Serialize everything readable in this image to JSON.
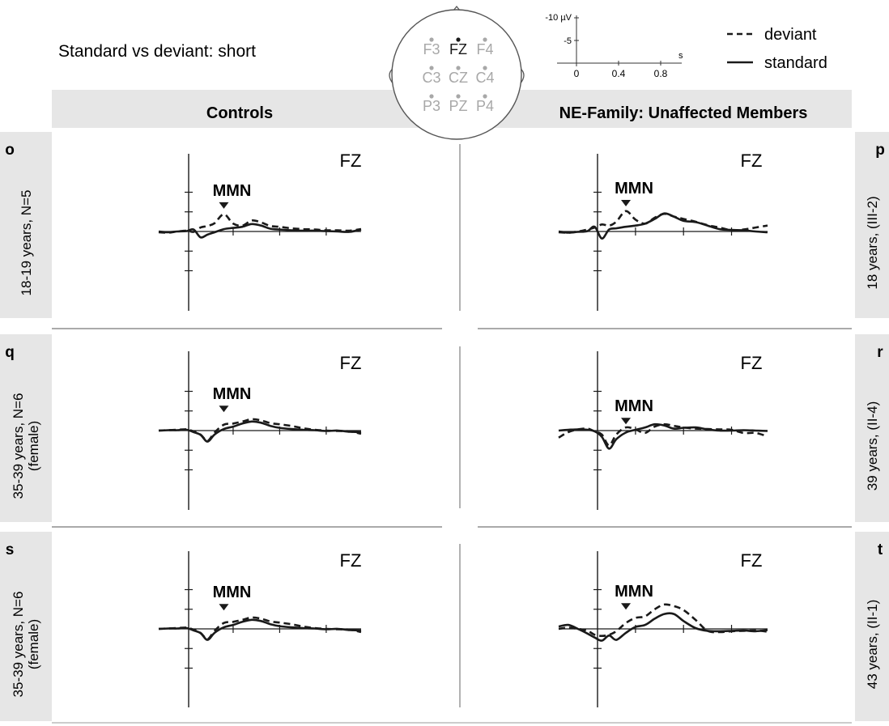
{
  "figure": {
    "title": "Standard vs deviant: short",
    "column_headers": [
      "Controls",
      "NE-Family: Unaffected Members"
    ],
    "electrodes": [
      {
        "label": "F3",
        "active": false
      },
      {
        "label": "FZ",
        "active": true
      },
      {
        "label": "F4",
        "active": false
      },
      {
        "label": "C3",
        "active": false
      },
      {
        "label": "CZ",
        "active": false
      },
      {
        "label": "C4",
        "active": false
      },
      {
        "label": "P3",
        "active": false
      },
      {
        "label": "PZ",
        "active": false
      },
      {
        "label": "P4",
        "active": false
      }
    ],
    "scale_legend": {
      "y_unit": "-10 µV",
      "y_mid": "-5",
      "x_unit": "s",
      "x_ticks": [
        "0",
        "0.4",
        "0.8"
      ]
    },
    "legend": [
      {
        "label": "deviant",
        "style": "dashed"
      },
      {
        "label": "standard",
        "style": "solid"
      }
    ],
    "colors": {
      "header_bg": "#e6e6e6",
      "trace": "#1a1a1a",
      "inactive_electrode": "#a8a8a8"
    }
  },
  "chart_data": [
    {
      "type": "line",
      "panel": "o",
      "column": "Controls",
      "row_label": "18-19 years, N=5",
      "electrode": "FZ",
      "annotation": "MMN",
      "annotation_x": 0.16,
      "annotation_y": -5.8,
      "xlim": [
        -0.12,
        0.75
      ],
      "ylim": [
        10,
        -10
      ],
      "invert_y": true,
      "series": [
        {
          "name": "deviant",
          "x": [
            -0.12,
            -0.08,
            -0.04,
            0,
            0.03,
            0.06,
            0.09,
            0.12,
            0.16,
            0.2,
            0.24,
            0.28,
            0.32,
            0.36,
            0.4,
            0.45,
            0.5,
            0.55,
            0.6,
            0.65,
            0.7,
            0.75
          ],
          "y": [
            0.2,
            0.3,
            0,
            -0.2,
            0.1,
            -1,
            -1.4,
            -2.1,
            -4.4,
            -2,
            -1.5,
            -2.8,
            -2.3,
            -1.4,
            -1.2,
            -0.8,
            -0.6,
            -0.5,
            -0.3,
            -0.3,
            -0.2,
            -0.6
          ]
        },
        {
          "name": "standard",
          "x": [
            -0.12,
            -0.08,
            -0.04,
            0,
            0.03,
            0.06,
            0.09,
            0.12,
            0.16,
            0.2,
            0.24,
            0.28,
            0.32,
            0.36,
            0.4,
            0.45,
            0.5,
            0.55,
            0.6,
            0.65,
            0.7,
            0.75
          ],
          "y": [
            0,
            0.2,
            0,
            -0.1,
            -0.5,
            1.5,
            0.8,
            0.2,
            -0.6,
            -0.9,
            -1.2,
            -1.9,
            -1.5,
            -0.7,
            -0.5,
            -0.3,
            -0.2,
            -0.2,
            -0.1,
            0,
            0.1,
            -0.5
          ]
        }
      ]
    },
    {
      "type": "line",
      "panel": "p",
      "column": "NE-Family: Unaffected Members",
      "row_label": "18 years, (III-2)",
      "electrode": "FZ",
      "annotation": "MMN",
      "annotation_x": 0.16,
      "annotation_y": -6.4,
      "xlim": [
        -0.12,
        0.75
      ],
      "ylim": [
        10,
        -10
      ],
      "invert_y": true,
      "series": [
        {
          "name": "deviant",
          "x": [
            -0.12,
            -0.08,
            -0.04,
            0,
            0.03,
            0.06,
            0.09,
            0.12,
            0.16,
            0.2,
            0.24,
            0.28,
            0.32,
            0.36,
            0.4,
            0.45,
            0.5,
            0.55,
            0.6,
            0.65,
            0.7,
            0.75
          ],
          "y": [
            0.2,
            0.3,
            0,
            -0.5,
            -1,
            -1.8,
            -1.5,
            -2.5,
            -5.2,
            -3,
            -2,
            -3.5,
            -4.5,
            -3.8,
            -3.2,
            -2.5,
            -1.6,
            -1,
            -0.3,
            -0.5,
            -1,
            -1.5
          ]
        },
        {
          "name": "standard",
          "x": [
            -0.12,
            -0.08,
            -0.04,
            0,
            0.03,
            0.06,
            0.09,
            0.12,
            0.16,
            0.2,
            0.24,
            0.28,
            0.32,
            0.36,
            0.4,
            0.45,
            0.5,
            0.55,
            0.6,
            0.65,
            0.7,
            0.75
          ],
          "y": [
            0,
            0.3,
            0.1,
            -0.1,
            -1.2,
            1.8,
            -0.5,
            -0.8,
            -1.2,
            -1.5,
            -2,
            -3.2,
            -4.6,
            -3.8,
            -2.7,
            -2.4,
            -1.5,
            -0.6,
            -0.4,
            -0.3,
            0,
            0.2
          ]
        }
      ]
    },
    {
      "type": "line",
      "panel": "q",
      "column": "Controls",
      "row_label": "35-39 years, N=6 (female)",
      "electrode": "FZ",
      "annotation": "MMN",
      "annotation_x": 0.16,
      "annotation_y": -4.7,
      "xlim": [
        -0.12,
        0.75
      ],
      "ylim": [
        10,
        -10
      ],
      "invert_y": true,
      "series": [
        {
          "name": "deviant",
          "x": [
            -0.12,
            -0.08,
            -0.04,
            0,
            0.03,
            0.06,
            0.09,
            0.12,
            0.16,
            0.2,
            0.24,
            0.28,
            0.32,
            0.36,
            0.4,
            0.45,
            0.5,
            0.55,
            0.6,
            0.65,
            0.7,
            0.75
          ],
          "y": [
            0,
            -0.1,
            -0.2,
            -0.3,
            0.2,
            1,
            2.6,
            0.5,
            -1.5,
            -1.8,
            -2.3,
            -2.9,
            -2.6,
            -1.9,
            -1.6,
            -1.2,
            -0.6,
            -0.2,
            0,
            0.1,
            0.2,
            0.8
          ]
        },
        {
          "name": "standard",
          "x": [
            -0.12,
            -0.08,
            -0.04,
            0,
            0.03,
            0.06,
            0.09,
            0.12,
            0.16,
            0.2,
            0.24,
            0.28,
            0.32,
            0.36,
            0.4,
            0.45,
            0.5,
            0.55,
            0.6,
            0.65,
            0.7,
            0.75
          ],
          "y": [
            0,
            -0.1,
            -0.1,
            -0.2,
            0.4,
            1.1,
            2.8,
            1,
            -0.4,
            -1,
            -1.8,
            -2.3,
            -2,
            -1.2,
            -0.7,
            -0.4,
            -0.2,
            -0.1,
            0.1,
            0,
            0.3,
            0.4
          ]
        }
      ]
    },
    {
      "type": "line",
      "panel": "r",
      "column": "NE-Family: Unaffected Members",
      "row_label": "39 years, (II-4)",
      "electrode": "FZ",
      "annotation": "MMN",
      "annotation_x": 0.16,
      "annotation_y": -1.6,
      "xlim": [
        -0.12,
        0.75
      ],
      "ylim": [
        10,
        -10
      ],
      "invert_y": true,
      "series": [
        {
          "name": "deviant",
          "x": [
            -0.12,
            -0.08,
            -0.04,
            0,
            0.03,
            0.06,
            0.09,
            0.12,
            0.16,
            0.2,
            0.24,
            0.28,
            0.32,
            0.36,
            0.4,
            0.45,
            0.5,
            0.55,
            0.6,
            0.65,
            0.7,
            0.75
          ],
          "y": [
            1.8,
            0.4,
            -0.3,
            -0.5,
            0.2,
            1,
            3.8,
            1,
            -0.8,
            -0.3,
            0.6,
            -1,
            -1.6,
            -1.2,
            -0.8,
            -0.5,
            -0.4,
            -0.3,
            -0.2,
            0.6,
            0.6,
            1.5
          ]
        },
        {
          "name": "standard",
          "x": [
            -0.12,
            -0.08,
            -0.04,
            0,
            0.03,
            0.06,
            0.09,
            0.12,
            0.16,
            0.2,
            0.24,
            0.28,
            0.32,
            0.36,
            0.4,
            0.45,
            0.5,
            0.55,
            0.6,
            0.65,
            0.7,
            0.75
          ],
          "y": [
            0,
            -0.2,
            -0.3,
            -0.2,
            0.2,
            1.6,
            4.6,
            2.2,
            0.5,
            -0.2,
            -0.8,
            -1.6,
            -1.3,
            -0.5,
            -0.7,
            -0.8,
            -0.3,
            0,
            0,
            -0.1,
            0,
            0.1
          ]
        }
      ]
    },
    {
      "type": "line",
      "panel": "s",
      "column": "Controls",
      "row_label": "35-39 years, N=6 (female)",
      "electrode": "FZ",
      "annotation": "MMN",
      "annotation_x": 0.16,
      "annotation_y": -4.7,
      "xlim": [
        -0.12,
        0.75
      ],
      "ylim": [
        10,
        -10
      ],
      "invert_y": true,
      "series": [
        {
          "name": "deviant",
          "x": [
            -0.12,
            -0.08,
            -0.04,
            0,
            0.03,
            0.06,
            0.09,
            0.12,
            0.16,
            0.2,
            0.24,
            0.28,
            0.32,
            0.36,
            0.4,
            0.45,
            0.5,
            0.55,
            0.6,
            0.65,
            0.7,
            0.75
          ],
          "y": [
            0,
            -0.1,
            -0.2,
            -0.3,
            0.2,
            1,
            2.6,
            0.5,
            -1.5,
            -1.8,
            -2.3,
            -2.9,
            -2.6,
            -1.9,
            -1.6,
            -1.2,
            -0.6,
            -0.2,
            0,
            0.1,
            0.2,
            0.8
          ]
        },
        {
          "name": "standard",
          "x": [
            -0.12,
            -0.08,
            -0.04,
            0,
            0.03,
            0.06,
            0.09,
            0.12,
            0.16,
            0.2,
            0.24,
            0.28,
            0.32,
            0.36,
            0.4,
            0.45,
            0.5,
            0.55,
            0.6,
            0.65,
            0.7,
            0.75
          ],
          "y": [
            0,
            -0.1,
            -0.1,
            -0.2,
            0.4,
            1.1,
            2.8,
            1,
            -0.4,
            -1,
            -1.8,
            -2.3,
            -2,
            -1.2,
            -0.7,
            -0.4,
            -0.2,
            -0.1,
            0.1,
            0,
            0.3,
            0.4
          ]
        }
      ]
    },
    {
      "type": "line",
      "panel": "t",
      "column": "NE-Family: Unaffected Members",
      "row_label": "43 years, (II-1)",
      "electrode": "FZ",
      "annotation": "MMN",
      "annotation_x": 0.16,
      "annotation_y": -4.9,
      "xlim": [
        -0.12,
        0.75
      ],
      "ylim": [
        10,
        -10
      ],
      "invert_y": true,
      "series": [
        {
          "name": "deviant",
          "x": [
            -0.12,
            -0.08,
            -0.04,
            0,
            0.03,
            0.06,
            0.09,
            0.12,
            0.16,
            0.2,
            0.24,
            0.28,
            0.32,
            0.36,
            0.4,
            0.45,
            0.5,
            0.55,
            0.6,
            0.65,
            0.7,
            0.75
          ],
          "y": [
            0,
            -0.3,
            0,
            0.5,
            1.5,
            1.8,
            1.5,
            0.6,
            -1.5,
            -2.8,
            -3.2,
            -5,
            -6.2,
            -5.8,
            -4.8,
            -2.3,
            0.5,
            0.8,
            0.6,
            0.5,
            0.4,
            0.7
          ]
        },
        {
          "name": "standard",
          "x": [
            -0.12,
            -0.08,
            -0.04,
            0,
            0.03,
            0.06,
            0.09,
            0.12,
            0.16,
            0.2,
            0.24,
            0.28,
            0.32,
            0.36,
            0.4,
            0.45,
            0.5,
            0.55,
            0.6,
            0.65,
            0.7,
            0.75
          ],
          "y": [
            -0.6,
            -1,
            0,
            1.2,
            2.2,
            3,
            1.7,
            2.8,
            1,
            -0.5,
            -1,
            -2.6,
            -3.8,
            -3.8,
            -2,
            -0.2,
            0.5,
            0.6,
            0.5,
            0.4,
            0.6,
            0.3
          ]
        }
      ]
    }
  ]
}
